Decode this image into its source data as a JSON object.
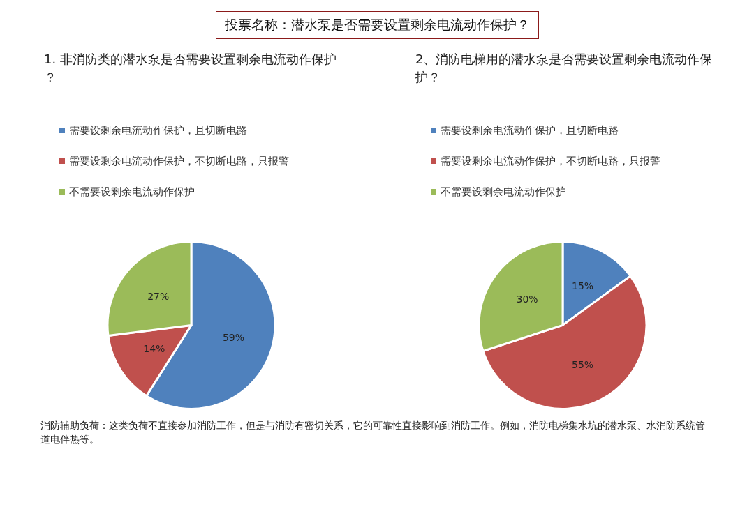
{
  "chart_data": [
    {
      "type": "pie",
      "title": "投票名称：潜水泵是否需要设置剩余电流动作保护？",
      "subtitle": "1. 非消防类的潜水泵是否需要设置剩余电流动作保护？",
      "categories": [
        "需要设剩余电流动作保护，且切断电路",
        "需要设剩余电流动作保护，不切断电路，只报警",
        "不需要设剩余电流动作保护"
      ],
      "values": [
        59,
        14,
        27
      ],
      "value_labels": [
        "59%",
        "14%",
        "27%"
      ],
      "colors": [
        "#4f81bd",
        "#c0504d",
        "#9bbb59"
      ],
      "legend": "top left",
      "annotations": [
        "消防辅助负荷：这类负荷不直接参加消防工作，但是与消防有密切关系，它的可靠性直接影响到消防工作。例如，消防电梯集水坑的潜水泵、水消防系统管道电伴热等。"
      ]
    },
    {
      "type": "pie",
      "subtitle": "2、消防电梯用的潜水泵是否需要设置剩余电流动作保护？",
      "categories": [
        "需要设剩余电流动作保护，且切断电路",
        "需要设剩余电流动作保护，不切断电路，只报警",
        "不需要设剩余电流动作保护"
      ],
      "values": [
        15,
        55,
        30
      ],
      "value_labels": [
        "15%",
        "55%",
        "30%"
      ],
      "colors": [
        "#4f81bd",
        "#c0504d",
        "#9bbb59"
      ],
      "legend": "top left"
    }
  ]
}
